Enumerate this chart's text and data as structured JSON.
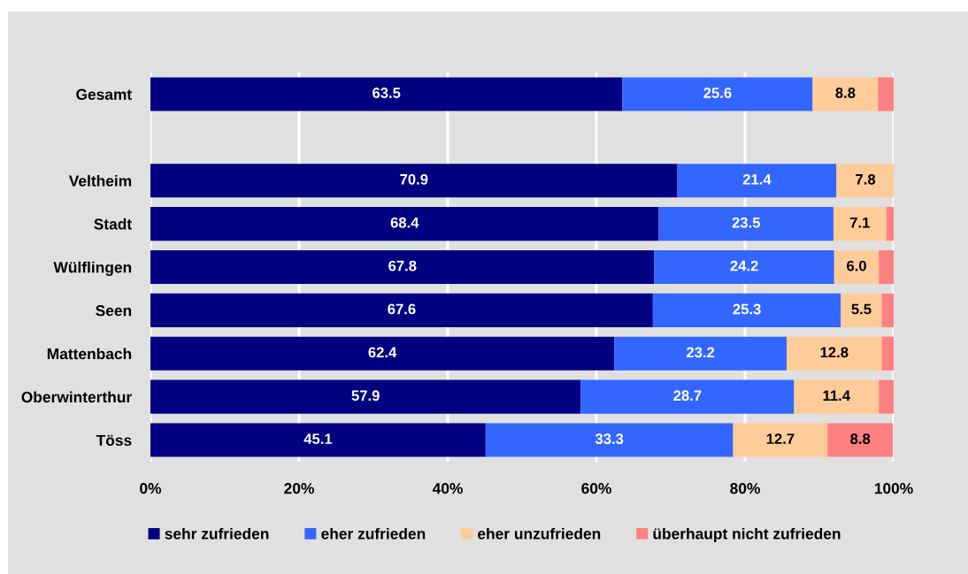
{
  "chart_data": {
    "type": "bar",
    "orientation": "horizontal",
    "stacked": true,
    "categories": [
      "Gesamt",
      null,
      "Veltheim",
      "Stadt",
      "Wülflingen",
      "Seen",
      "Mattenbach",
      "Oberwinterthur",
      "Töss"
    ],
    "series": [
      {
        "name": "sehr zufrieden",
        "color": "#000080",
        "values": [
          63.5,
          null,
          70.9,
          68.4,
          67.8,
          67.6,
          62.4,
          57.9,
          45.1
        ],
        "value_labels": [
          "63.5",
          null,
          "70.9",
          "68.4",
          "67.8",
          "67.6",
          "62.4",
          "57.9",
          "45.1"
        ]
      },
      {
        "name": "eher zufrieden",
        "color": "#3366ff",
        "values": [
          25.6,
          null,
          21.4,
          23.5,
          24.2,
          25.3,
          23.2,
          28.7,
          33.3
        ],
        "value_labels": [
          "25.6",
          null,
          "21.4",
          "23.5",
          "24.2",
          "25.3",
          "23.2",
          "28.7",
          "33.3"
        ]
      },
      {
        "name": "eher unzufrieden",
        "color": "#ffcc99",
        "values": [
          8.8,
          null,
          7.8,
          7.1,
          6.0,
          5.5,
          12.8,
          11.4,
          12.7
        ],
        "value_labels": [
          "8.8",
          null,
          "7.8",
          "7.1",
          "6.0",
          "5.5",
          "12.8",
          "11.4",
          "12.7"
        ]
      },
      {
        "name": "überhaupt nicht zufrieden",
        "color": "#ff8080",
        "values": [
          2.1,
          null,
          null,
          1.0,
          2.0,
          1.6,
          1.6,
          2.0,
          8.8
        ],
        "value_labels": [
          null,
          null,
          null,
          null,
          null,
          null,
          null,
          null,
          "8.8"
        ]
      }
    ],
    "xlim": [
      0,
      100
    ],
    "xticks": [
      {
        "value": 0,
        "label": "0%"
      },
      {
        "value": 20,
        "label": "20%"
      },
      {
        "value": 40,
        "label": "40%"
      },
      {
        "value": 60,
        "label": "60%"
      },
      {
        "value": 80,
        "label": "80%"
      },
      {
        "value": 100,
        "label": "100%"
      }
    ],
    "grid": "x",
    "legend": "bottom"
  }
}
